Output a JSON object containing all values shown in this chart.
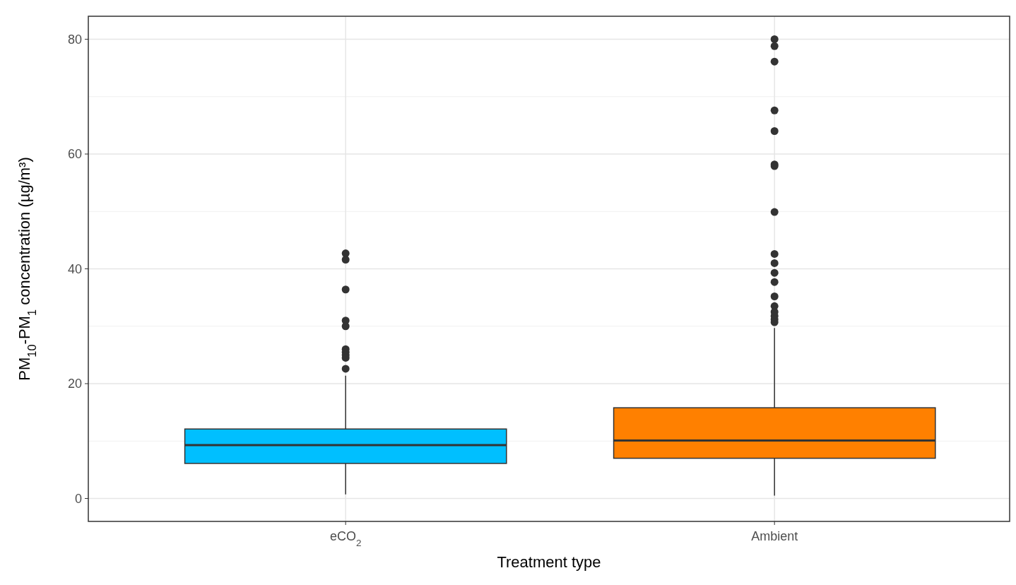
{
  "chart_data": {
    "type": "box",
    "xlabel": "Treatment type",
    "ylabel": "PM$_{10}$-PM$_{1}$ concentration (µg/m³)",
    "categories": [
      "eCO$_{2}$",
      "Ambient"
    ],
    "colors": [
      "#00bfff",
      "#ff8000"
    ],
    "boxes": [
      {
        "low": 0.7,
        "q1": 6.1,
        "median": 9.3,
        "q3": 12.1,
        "high": 21.4,
        "outliers": [
          42.7,
          41.6,
          36.4,
          31.0,
          30.0,
          26.0,
          25.5,
          25.0,
          24.5,
          22.6
        ]
      },
      {
        "low": 0.5,
        "q1": 7.0,
        "median": 10.1,
        "q3": 15.8,
        "high": 29.7,
        "outliers": [
          80.0,
          78.8,
          76.1,
          67.6,
          64.0,
          58.2,
          57.9,
          49.9,
          42.6,
          41.0,
          39.3,
          37.7,
          35.2,
          33.5,
          32.5,
          31.8,
          31.2,
          30.7
        ]
      }
    ],
    "ylim": [
      -4,
      84
    ],
    "yticks": [
      0,
      20,
      40,
      60,
      80
    ],
    "grid": true
  }
}
